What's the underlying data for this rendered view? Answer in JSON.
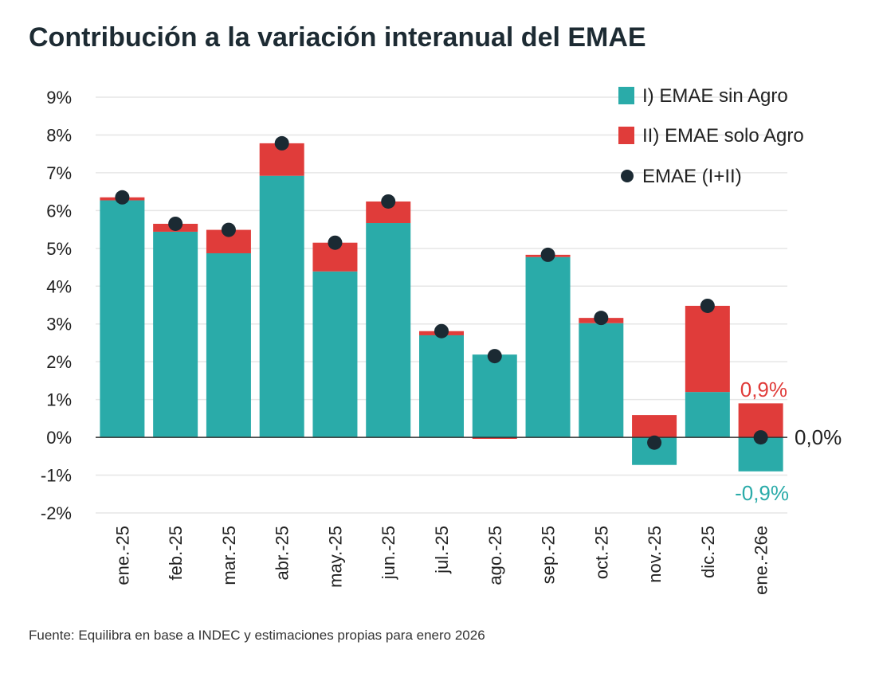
{
  "chart_data": {
    "type": "bar",
    "stacked": true,
    "title": "Contribución a la variación interanual del EMAE",
    "source": "Fuente: Equilibra en base a INDEC y estimaciones propias para enero 2026",
    "categories": [
      "ene.-25",
      "feb.-25",
      "mar.-25",
      "abr.-25",
      "may.-25",
      "jun.-25",
      "jul.-25",
      "ago.-25",
      "sep.-25",
      "oct.-25",
      "nov.-25",
      "dic.-25",
      "ene.-26e"
    ],
    "series": [
      {
        "name": "I) EMAE sin Agro",
        "type": "bar",
        "color": "#2aaba9",
        "values": [
          6.27,
          5.44,
          4.87,
          6.92,
          4.39,
          5.67,
          2.7,
          2.19,
          4.77,
          3.02,
          -0.73,
          1.2,
          -0.9
        ]
      },
      {
        "name": "II) EMAE solo Agro",
        "type": "bar",
        "color": "#e03c3a",
        "values": [
          0.08,
          0.21,
          0.62,
          0.86,
          0.76,
          0.57,
          0.11,
          -0.04,
          0.06,
          0.14,
          0.59,
          2.28,
          0.9
        ]
      },
      {
        "name": "EMAE (I+II)",
        "type": "scatter",
        "color": "#1b2a33",
        "values": [
          6.35,
          5.65,
          5.49,
          7.78,
          5.15,
          6.24,
          2.81,
          2.15,
          4.83,
          3.16,
          -0.14,
          3.48,
          0.0
        ]
      }
    ],
    "yticks": [
      "9%",
      "8%",
      "7%",
      "6%",
      "5%",
      "4%",
      "3%",
      "2%",
      "1%",
      "0%",
      "-1%",
      "-2%"
    ],
    "ylim": [
      -2,
      9
    ],
    "grid": true,
    "legend": "top-right",
    "annotations": [
      {
        "text": "0,9%",
        "color": "#e03c3a"
      },
      {
        "text": "0,0%",
        "color": "#222222"
      },
      {
        "text": "-0,9%",
        "color": "#2aaba9"
      }
    ]
  }
}
